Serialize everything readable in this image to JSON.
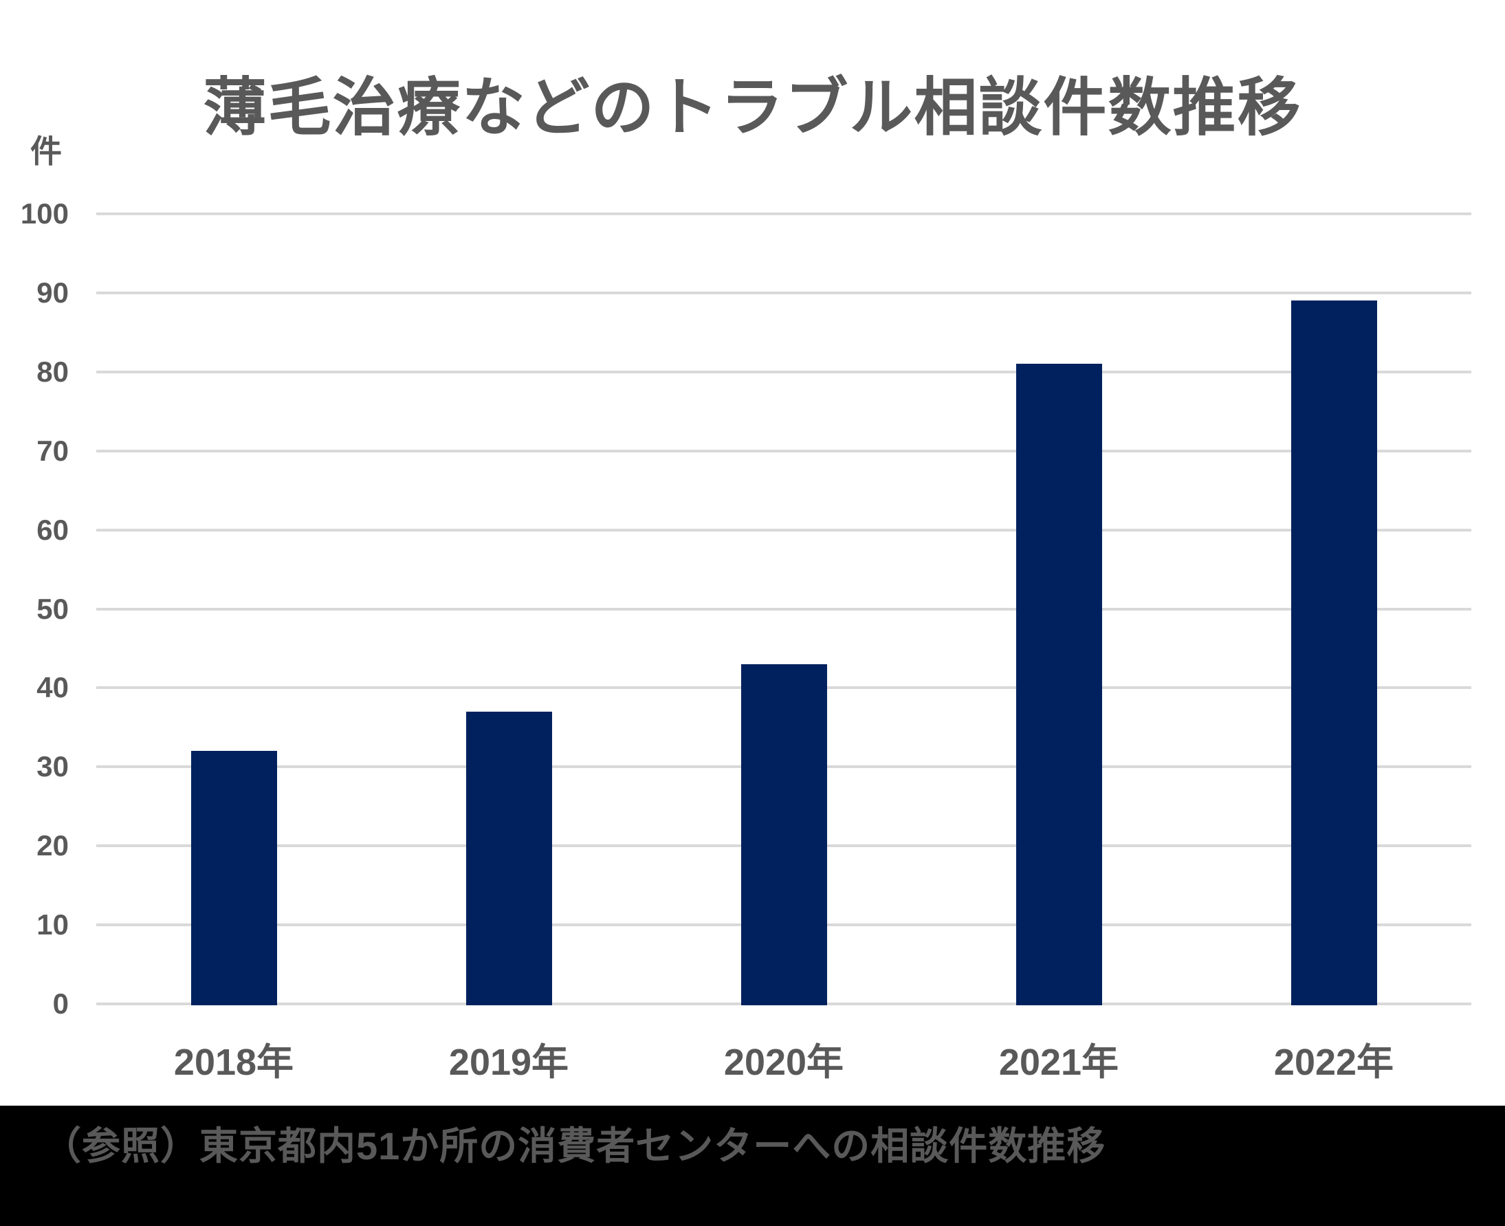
{
  "title": "薄毛治療などのトラブル相談件数推移",
  "y_axis": {
    "unit_label": "件",
    "tick_labels": [
      "0",
      "10",
      "20",
      "30",
      "40",
      "50",
      "60",
      "70",
      "80",
      "90",
      "100"
    ]
  },
  "footer": {
    "text": "（参照）東京都内51か所の消費者センターへの相談件数推移"
  },
  "colors": {
    "bar": "#01215E",
    "grid": "#D9D9D9",
    "text": "#595959",
    "footer_bg": "#000000",
    "footer_text": "#595959",
    "background": "#FFFFFF"
  },
  "chart_data": {
    "type": "bar",
    "title": "薄毛治療などのトラブル相談件数推移",
    "categories": [
      "2018年",
      "2019年",
      "2020年",
      "2021年",
      "2022年"
    ],
    "values": [
      32,
      37,
      43,
      81,
      89
    ],
    "xlabel": "",
    "ylabel": "件",
    "ylim": [
      0,
      100
    ],
    "ytick_step": 10,
    "grid": true,
    "legend": false,
    "source_note": "（参照）東京都内51か所の消費者センターへの相談件数推移"
  }
}
